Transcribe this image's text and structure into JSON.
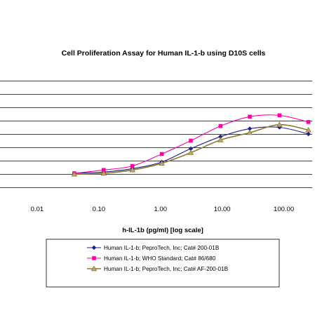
{
  "chart_data": {
    "type": "line",
    "title": "Cell Proliferation Assay for Human IL-1-b using D10S cells",
    "xlabel": "h-IL-1b (pg/ml) [log scale]",
    "ylabel": "",
    "x_scale": "log",
    "x_ticks": [
      0.01,
      0.1,
      1,
      10,
      100
    ],
    "x_tick_labels": [
      "0.01",
      "0.10",
      "1.00",
      "10.00",
      "100.00"
    ],
    "xlim": [
      0.0025,
      320
    ],
    "ylim": [
      0,
      8
    ],
    "grid": "horizontal",
    "legend_position": "bottom",
    "series": [
      {
        "name": "Human IL-1-b; PeproTech, Inc; Cat# 200-01B",
        "color": "#1f1f8c",
        "marker": "diamond",
        "x": [
          0.04,
          0.12,
          0.35,
          1.05,
          3.1,
          9.4,
          28,
          85,
          250
        ],
        "y": [
          1.05,
          1.15,
          1.4,
          1.9,
          2.9,
          3.8,
          4.4,
          4.5,
          4.0
        ]
      },
      {
        "name": "Human IL-1-b; WHO Standard; Cat# 86/680",
        "color": "#ff00a6",
        "marker": "square",
        "x": [
          0.04,
          0.12,
          0.35,
          1.05,
          3.1,
          9.4,
          28,
          85,
          250
        ],
        "y": [
          1.05,
          1.3,
          1.6,
          2.5,
          3.5,
          4.6,
          5.3,
          5.4,
          4.9
        ]
      },
      {
        "name": "Human IL-1-b; PeproTech, Inc; Cat# AF-200-01B",
        "color": "#8c7a32",
        "marker": "triangle",
        "x": [
          0.04,
          0.12,
          0.35,
          1.05,
          3.1,
          9.4,
          28,
          85,
          250
        ],
        "y": [
          0.98,
          1.05,
          1.3,
          1.8,
          2.6,
          3.55,
          4.1,
          4.7,
          4.3
        ]
      }
    ]
  }
}
